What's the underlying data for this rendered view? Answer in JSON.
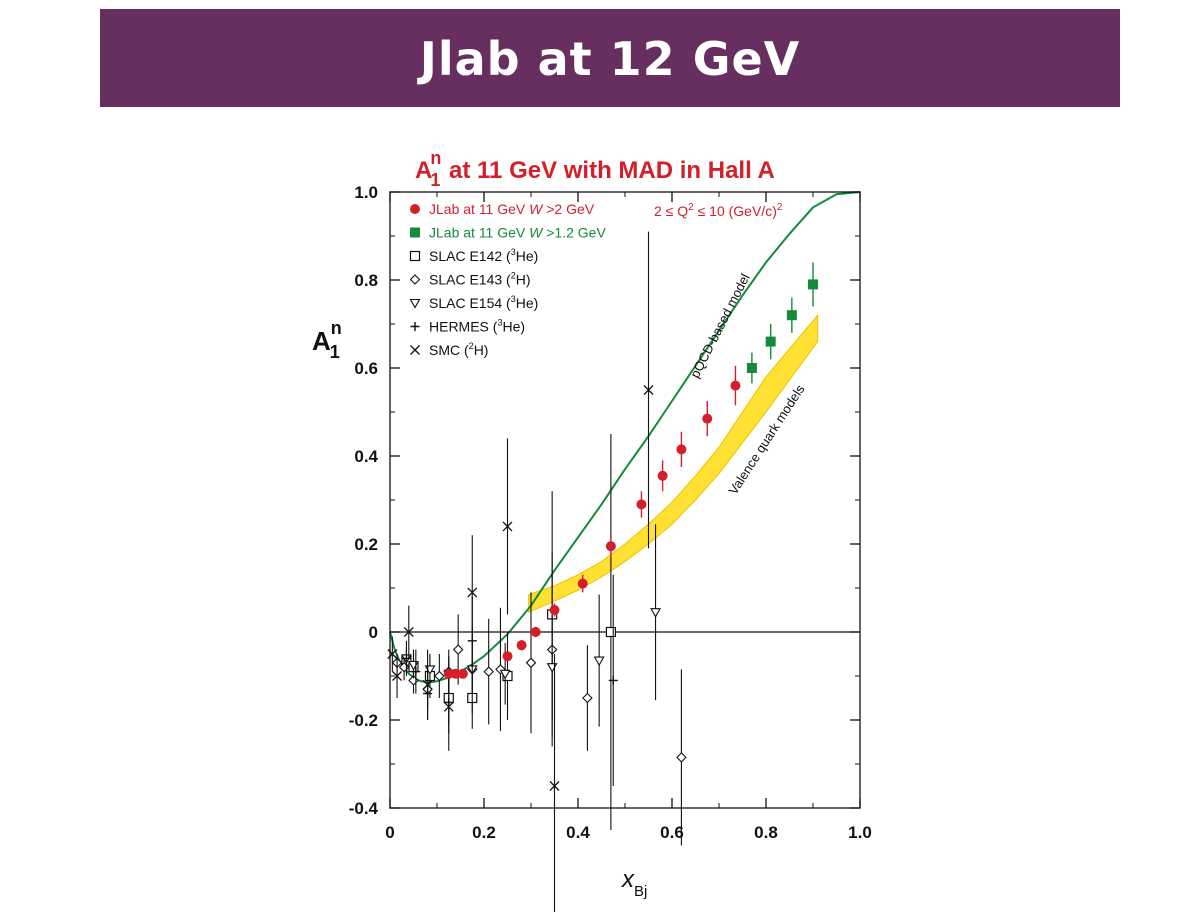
{
  "slide": {
    "title": "Jlab at 12 GeV"
  },
  "colors": {
    "banner": "#662f5f",
    "jlab_red": "#d41f2a",
    "jlab_green": "#138a3c",
    "band": "#ffe033",
    "model_line": "#138a3c"
  },
  "chart_data": {
    "type": "scatter",
    "title": {
      "main": "A",
      "sup": "n",
      "sub": "1",
      "rest": " at 11 GeV with MAD in Hall A"
    },
    "ylabel": {
      "main": "A",
      "sup": "n",
      "sub": "1"
    },
    "xlabel": {
      "main": "x",
      "sub": "Bj"
    },
    "xlim": [
      0,
      1.0
    ],
    "ylim": [
      -0.4,
      1.0
    ],
    "x_ticks": [
      "0",
      "0.2",
      "0.4",
      "0.6",
      "0.8",
      "1.0"
    ],
    "y_ticks": [
      "-0.4",
      "-0.2",
      "0",
      "0.2",
      "0.4",
      "0.6",
      "0.8",
      "1.0"
    ],
    "kinematics_note": {
      "pre": "2 ≤ Q",
      "sup": "2",
      "mid": " ≤ 10 (GeV/c)",
      "sup2": "2"
    },
    "legend": [
      {
        "pre": "JLab at 11 GeV ",
        "it": "W",
        "post": " >2 GeV",
        "marker": "circle-filled",
        "color": "#d41f2a"
      },
      {
        "pre": "JLab at 11 GeV ",
        "it": "W",
        "post": " >1.2 GeV",
        "marker": "square-filled",
        "color": "#138a3c"
      },
      {
        "pre": "SLAC E142 (",
        "sup": "3",
        "post": "He)",
        "marker": "square-open",
        "color": "#111111"
      },
      {
        "pre": "SLAC E143 (",
        "sup": "2",
        "post": "H)",
        "marker": "diamond-open",
        "color": "#111111"
      },
      {
        "pre": "SLAC E154 (",
        "sup": "3",
        "post": "He)",
        "marker": "triangle-down-open",
        "color": "#111111"
      },
      {
        "pre": "HERMES (",
        "sup": "3",
        "post": "He)",
        "marker": "plus",
        "color": "#111111"
      },
      {
        "pre": "SMC (",
        "sup": "2",
        "post": "H)",
        "marker": "cross",
        "color": "#111111"
      }
    ],
    "annotations": {
      "pqcd": "pQCD-based model",
      "valence": "Valence quark models"
    },
    "series": [
      {
        "name": "JLab at 11 GeV W >2 GeV",
        "marker": "circle-filled",
        "color": "#d41f2a",
        "x": [
          0.125,
          0.14,
          0.155,
          0.25,
          0.28,
          0.31,
          0.35,
          0.41,
          0.47,
          0.535,
          0.58,
          0.62,
          0.675,
          0.735
        ],
        "y": [
          -0.095,
          -0.095,
          -0.095,
          -0.055,
          -0.03,
          0.0,
          0.05,
          0.11,
          0.195,
          0.29,
          0.355,
          0.415,
          0.485,
          0.56
        ],
        "err": [
          0.01,
          0.01,
          0.01,
          0.01,
          0.012,
          0.012,
          0.015,
          0.02,
          0.025,
          0.03,
          0.035,
          0.04,
          0.04,
          0.045
        ]
      },
      {
        "name": "JLab at 11 GeV W >1.2 GeV",
        "marker": "square-filled",
        "color": "#138a3c",
        "x": [
          0.77,
          0.81,
          0.855,
          0.9
        ],
        "y": [
          0.6,
          0.66,
          0.72,
          0.79
        ],
        "err": [
          0.035,
          0.04,
          0.04,
          0.05
        ]
      },
      {
        "name": "SLAC E142 (3He)",
        "marker": "square-open",
        "color": "#111111",
        "x": [
          0.035,
          0.05,
          0.085,
          0.125,
          0.175,
          0.25,
          0.345,
          0.47
        ],
        "y": [
          -0.065,
          -0.08,
          -0.1,
          -0.15,
          -0.15,
          -0.1,
          0.04,
          0.0
        ],
        "err": [
          0.03,
          0.04,
          0.05,
          0.06,
          0.07,
          0.1,
          0.28,
          0.45
        ]
      },
      {
        "name": "SLAC E143 (2H)",
        "marker": "diamond-open",
        "color": "#111111",
        "x": [
          0.015,
          0.03,
          0.05,
          0.08,
          0.105,
          0.125,
          0.145,
          0.175,
          0.21,
          0.235,
          0.3,
          0.345,
          0.42,
          0.62
        ],
        "y": [
          -0.07,
          -0.08,
          -0.11,
          -0.13,
          -0.1,
          -0.09,
          -0.04,
          -0.085,
          -0.09,
          -0.085,
          -0.07,
          -0.04,
          -0.15,
          -0.285
        ],
        "err": [
          0.02,
          0.03,
          0.03,
          0.04,
          0.05,
          0.05,
          0.08,
          0.1,
          0.12,
          0.14,
          0.16,
          0.22,
          0.12,
          0.2
        ]
      },
      {
        "name": "SLAC E154 (3He)",
        "marker": "triangle-down-open",
        "color": "#111111",
        "x": [
          0.035,
          0.05,
          0.085,
          0.125,
          0.175,
          0.245,
          0.345,
          0.445,
          0.565
        ],
        "y": [
          -0.06,
          -0.075,
          -0.085,
          -0.095,
          -0.085,
          -0.095,
          -0.08,
          -0.065,
          0.045
        ],
        "err": [
          0.02,
          0.03,
          0.03,
          0.04,
          0.05,
          0.07,
          0.12,
          0.15,
          0.2
        ]
      },
      {
        "name": "HERMES (3He)",
        "marker": "plus",
        "color": "#111111",
        "x": [
          0.035,
          0.055,
          0.08,
          0.125,
          0.175,
          0.475
        ],
        "y": [
          -0.06,
          -0.09,
          -0.14,
          -0.16,
          -0.02,
          -0.11
        ],
        "err": [
          0.04,
          0.05,
          0.06,
          0.07,
          0.1,
          0.24
        ]
      },
      {
        "name": "SMC (2H)",
        "marker": "cross",
        "color": "#111111",
        "x": [
          0.005,
          0.015,
          0.04,
          0.08,
          0.125,
          0.175,
          0.25,
          0.35,
          0.55
        ],
        "y": [
          -0.05,
          -0.1,
          0.0,
          -0.12,
          -0.17,
          0.09,
          0.24,
          -0.35,
          0.55
        ],
        "err": [
          0.04,
          0.05,
          0.06,
          0.08,
          0.1,
          0.13,
          0.2,
          0.3,
          0.36
        ]
      }
    ],
    "model_curve": {
      "x": [
        0.0,
        0.01,
        0.02,
        0.04,
        0.06,
        0.08,
        0.1,
        0.12,
        0.15,
        0.18,
        0.2,
        0.25,
        0.3,
        0.35,
        0.4,
        0.45,
        0.5,
        0.55,
        0.6,
        0.65,
        0.7,
        0.75,
        0.8,
        0.85,
        0.9,
        0.95,
        1.0
      ],
      "y": [
        0.0,
        -0.04,
        -0.065,
        -0.095,
        -0.11,
        -0.115,
        -0.112,
        -0.105,
        -0.09,
        -0.07,
        -0.055,
        -0.005,
        0.06,
        0.14,
        0.215,
        0.29,
        0.37,
        0.445,
        0.525,
        0.605,
        0.685,
        0.765,
        0.84,
        0.905,
        0.965,
        0.995,
        1.0
      ]
    },
    "valence_band": {
      "x": [
        0.295,
        0.35,
        0.4,
        0.45,
        0.5,
        0.55,
        0.6,
        0.65,
        0.7,
        0.75,
        0.8,
        0.91
      ],
      "lower": [
        0.045,
        0.07,
        0.095,
        0.125,
        0.16,
        0.2,
        0.245,
        0.3,
        0.36,
        0.43,
        0.5,
        0.66
      ],
      "upper": [
        0.085,
        0.105,
        0.13,
        0.16,
        0.2,
        0.245,
        0.295,
        0.355,
        0.42,
        0.5,
        0.58,
        0.72
      ]
    }
  }
}
